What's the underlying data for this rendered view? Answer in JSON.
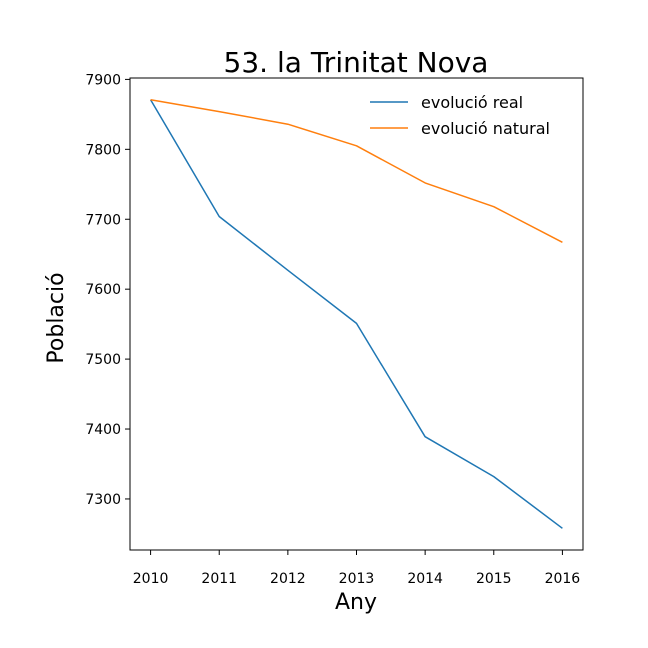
{
  "chart_data": {
    "type": "line",
    "title": "53. la Trinitat Nova",
    "xlabel": "Any",
    "ylabel": "Població",
    "x": [
      2010,
      2011,
      2012,
      2013,
      2014,
      2015,
      2016
    ],
    "xlim": [
      2009.7,
      2016.3
    ],
    "ylim": [
      7227,
      7902
    ],
    "yticks": [
      7300,
      7400,
      7500,
      7600,
      7700,
      7800,
      7900
    ],
    "grid": false,
    "legend_position": "top-right",
    "series": [
      {
        "name": "evolució real",
        "color": "#1f77b4",
        "values": [
          7871,
          7704,
          7627,
          7551,
          7389,
          7332,
          7258
        ]
      },
      {
        "name": "evolució natural",
        "color": "#ff7f0e",
        "values": [
          7871,
          7854,
          7836,
          7805,
          7752,
          7718,
          7667
        ]
      }
    ]
  }
}
